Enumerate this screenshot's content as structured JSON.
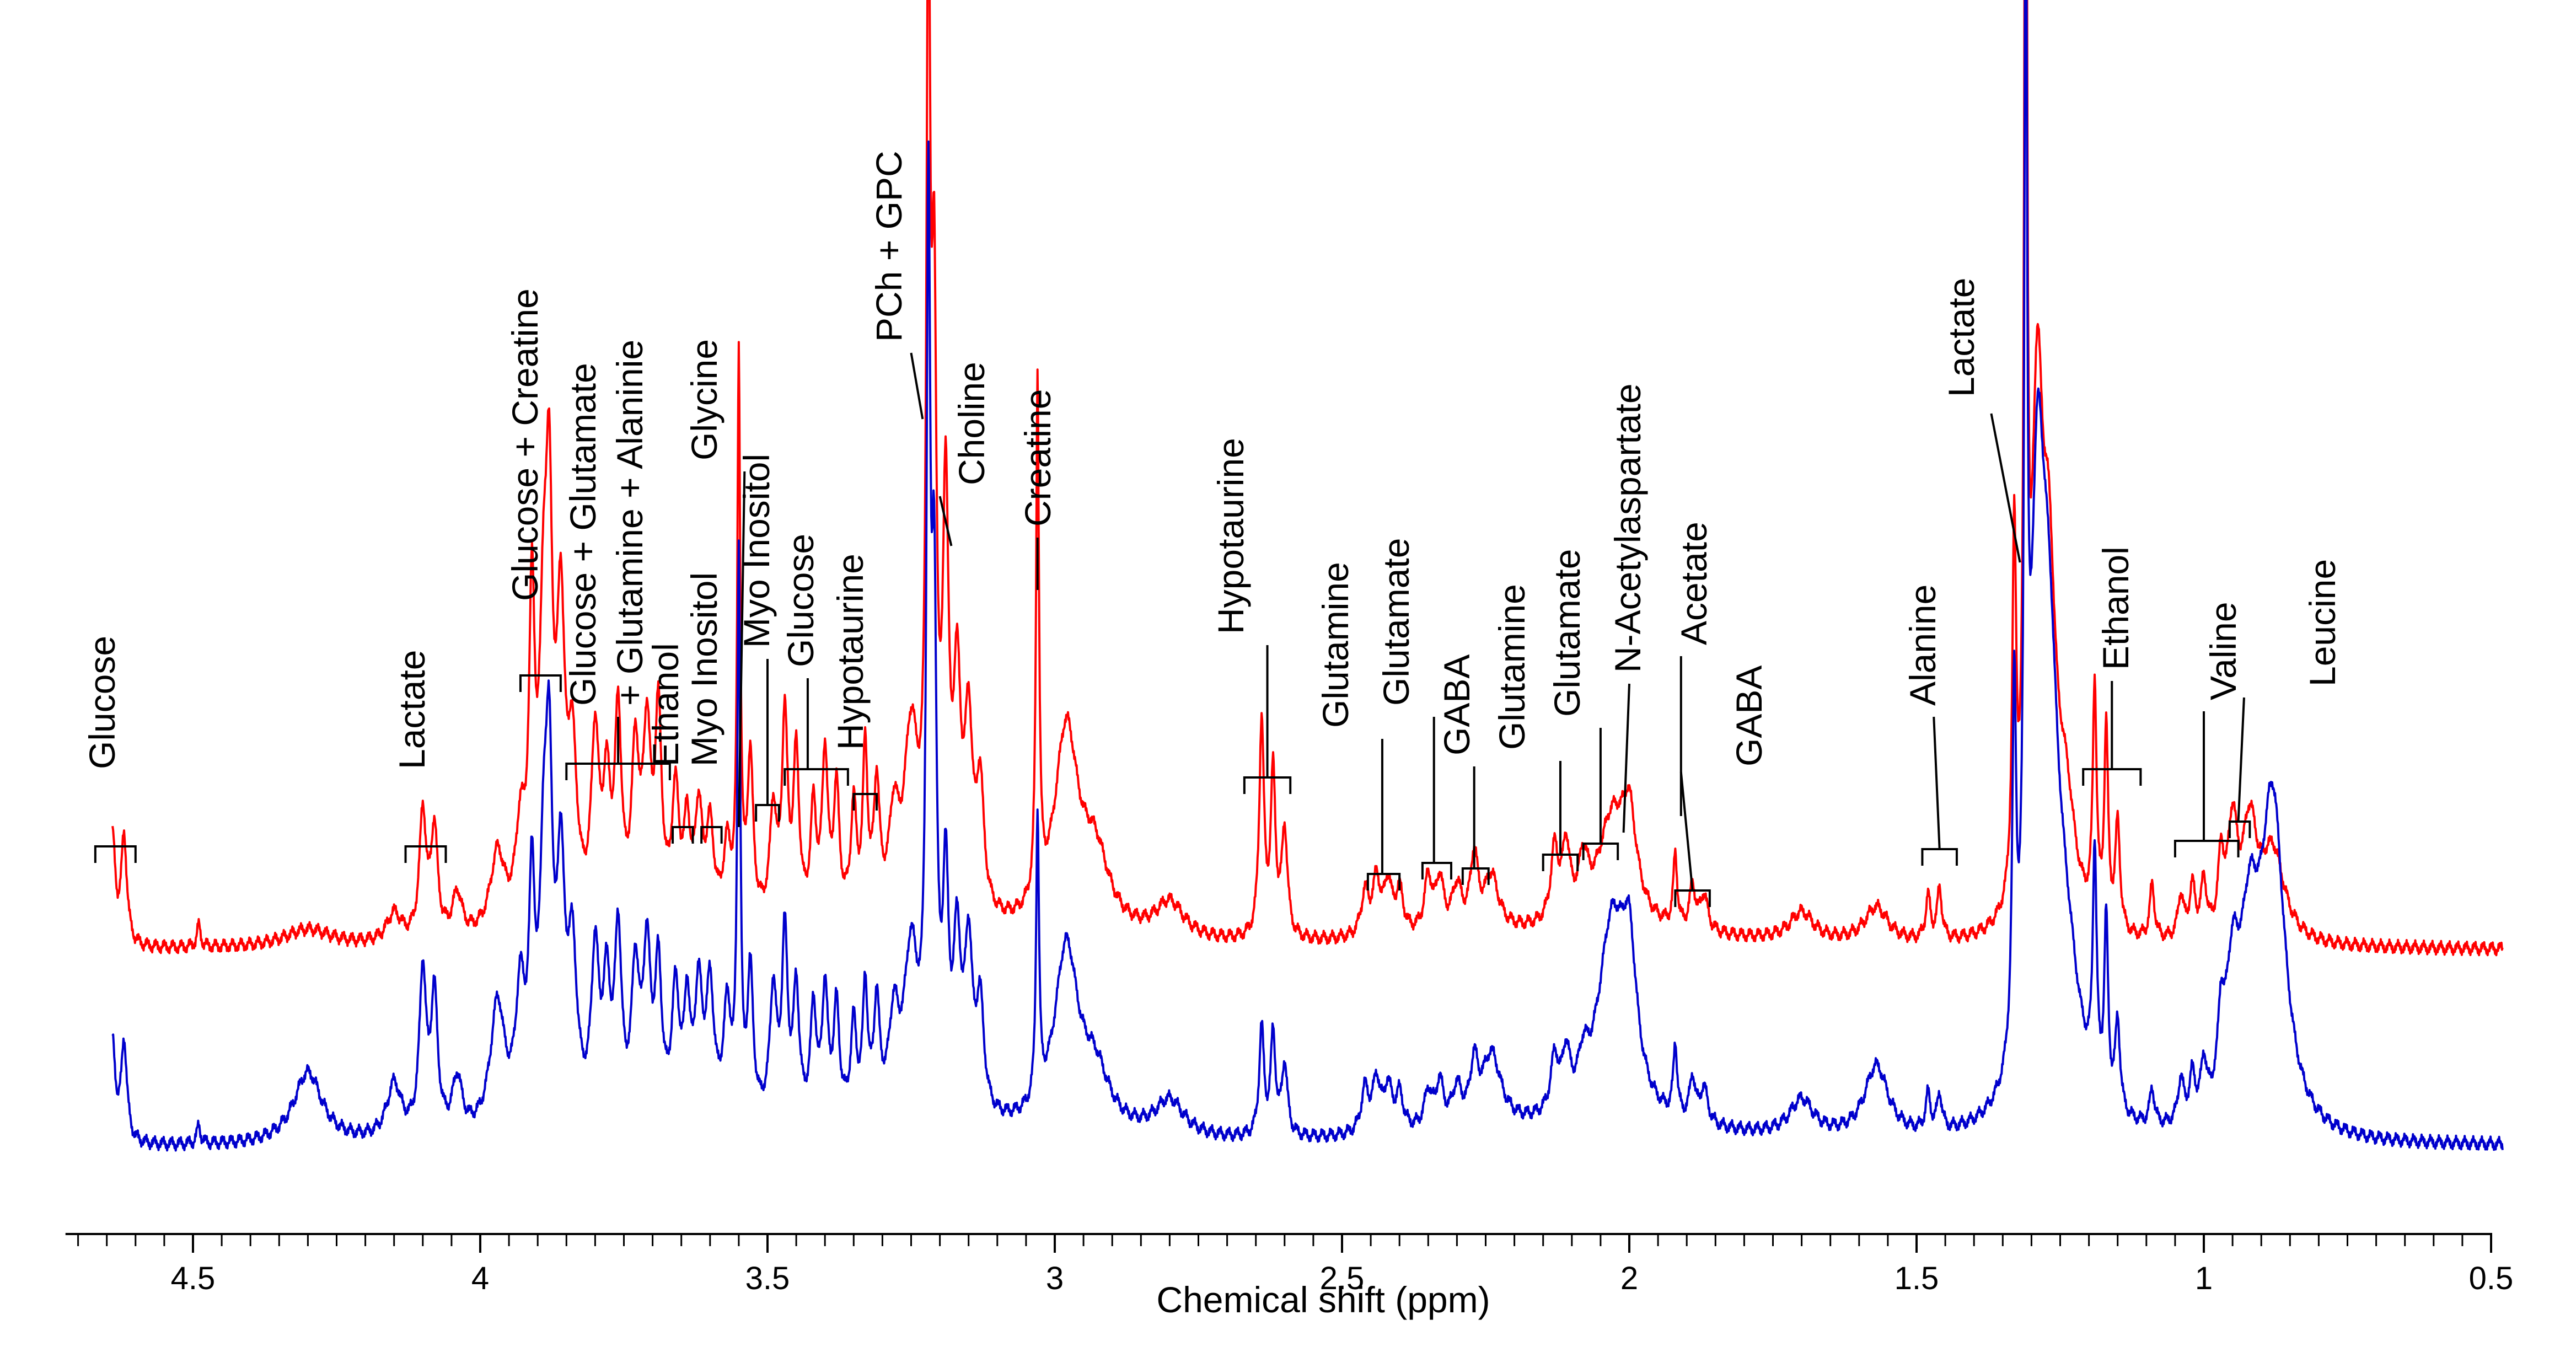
{
  "chart_data": {
    "type": "line",
    "title": "",
    "xlabel": "Chemical shift (ppm)",
    "ylabel": "",
    "xlim": [
      4.72,
      0.5
    ],
    "x_reversed": true,
    "grid": false,
    "legend": "none",
    "x_ticks": [
      {
        "value": 4.5,
        "label": "4.5"
      },
      {
        "value": 4.0,
        "label": "4"
      },
      {
        "value": 3.5,
        "label": "3.5"
      },
      {
        "value": 3.0,
        "label": "3"
      },
      {
        "value": 2.5,
        "label": "2.5"
      },
      {
        "value": 2.0,
        "label": "2"
      },
      {
        "value": 1.5,
        "label": "1.5"
      },
      {
        "value": 1.0,
        "label": "1"
      },
      {
        "value": 0.5,
        "label": "0.5"
      }
    ],
    "series": [
      {
        "name": "upper spectrum",
        "color": "#ff0000",
        "baseline": 0.0,
        "peaks": [
          [
            4.64,
            0.3,
            0.006
          ],
          [
            4.62,
            0.3,
            0.006
          ],
          [
            4.49,
            0.06,
            0.004
          ],
          [
            4.3,
            0.05,
            0.05
          ],
          [
            4.15,
            0.08,
            0.015
          ],
          [
            4.1,
            0.35,
            0.007
          ],
          [
            4.08,
            0.3,
            0.007
          ],
          [
            4.04,
            0.12,
            0.01
          ],
          [
            3.97,
            0.22,
            0.015
          ],
          [
            3.93,
            0.25,
            0.01
          ],
          [
            3.91,
            0.85,
            0.006
          ],
          [
            3.89,
            0.7,
            0.008
          ],
          [
            3.88,
            1.0,
            0.007
          ],
          [
            3.86,
            0.8,
            0.008
          ],
          [
            3.84,
            0.45,
            0.01
          ],
          [
            3.8,
            0.5,
            0.008
          ],
          [
            3.78,
            0.35,
            0.008
          ],
          [
            3.76,
            0.55,
            0.007
          ],
          [
            3.73,
            0.45,
            0.008
          ],
          [
            3.71,
            0.5,
            0.008
          ],
          [
            3.69,
            0.55,
            0.007
          ],
          [
            3.66,
            0.35,
            0.008
          ],
          [
            3.64,
            0.25,
            0.006
          ],
          [
            3.62,
            0.3,
            0.008
          ],
          [
            3.6,
            0.25,
            0.008
          ],
          [
            3.57,
            0.2,
            0.008
          ],
          [
            3.55,
            1.55,
            0.003
          ],
          [
            3.53,
            0.45,
            0.006
          ],
          [
            3.49,
            0.3,
            0.007
          ],
          [
            3.47,
            0.55,
            0.006
          ],
          [
            3.45,
            0.45,
            0.006
          ],
          [
            3.42,
            0.3,
            0.006
          ],
          [
            3.4,
            0.45,
            0.006
          ],
          [
            3.38,
            0.35,
            0.006
          ],
          [
            3.35,
            0.3,
            0.006
          ],
          [
            3.33,
            0.45,
            0.005
          ],
          [
            3.31,
            0.35,
            0.006
          ],
          [
            3.28,
            0.25,
            0.01
          ],
          [
            3.25,
            0.5,
            0.015
          ],
          [
            3.22,
            2.6,
            0.004
          ],
          [
            3.21,
            1.5,
            0.005
          ],
          [
            3.19,
            1.1,
            0.006
          ],
          [
            3.17,
            0.6,
            0.008
          ],
          [
            3.15,
            0.5,
            0.008
          ],
          [
            3.13,
            0.35,
            0.008
          ],
          [
            3.03,
            1.45,
            0.003
          ],
          [
            2.98,
            0.55,
            0.025
          ],
          [
            2.93,
            0.2,
            0.03
          ],
          [
            2.8,
            0.1,
            0.03
          ],
          [
            2.64,
            0.6,
            0.005
          ],
          [
            2.62,
            0.45,
            0.005
          ],
          [
            2.6,
            0.3,
            0.006
          ],
          [
            2.46,
            0.12,
            0.008
          ],
          [
            2.44,
            0.15,
            0.008
          ],
          [
            2.42,
            0.14,
            0.008
          ],
          [
            2.4,
            0.12,
            0.008
          ],
          [
            2.35,
            0.15,
            0.008
          ],
          [
            2.33,
            0.14,
            0.008
          ],
          [
            2.3,
            0.12,
            0.01
          ],
          [
            2.27,
            0.2,
            0.008
          ],
          [
            2.24,
            0.15,
            0.015
          ],
          [
            2.13,
            0.2,
            0.008
          ],
          [
            2.11,
            0.2,
            0.008
          ],
          [
            2.08,
            0.15,
            0.01
          ],
          [
            2.03,
            0.3,
            0.03
          ],
          [
            2.0,
            0.25,
            0.015
          ],
          [
            1.92,
            0.2,
            0.004
          ],
          [
            1.89,
            0.12,
            0.006
          ],
          [
            1.87,
            0.1,
            0.008
          ],
          [
            1.7,
            0.08,
            0.025
          ],
          [
            1.57,
            0.1,
            0.025
          ],
          [
            1.48,
            0.12,
            0.005
          ],
          [
            1.46,
            0.14,
            0.005
          ],
          [
            1.33,
            1.0,
            0.004
          ],
          [
            1.31,
            3.35,
            0.003
          ],
          [
            1.29,
            1.3,
            0.012
          ],
          [
            1.27,
            0.85,
            0.015
          ],
          [
            1.24,
            0.3,
            0.02
          ],
          [
            1.19,
            0.65,
            0.004
          ],
          [
            1.17,
            0.55,
            0.004
          ],
          [
            1.15,
            0.3,
            0.005
          ],
          [
            1.09,
            0.15,
            0.005
          ],
          [
            1.04,
            0.12,
            0.006
          ],
          [
            1.02,
            0.14,
            0.006
          ],
          [
            1.0,
            0.15,
            0.006
          ],
          [
            0.97,
            0.2,
            0.006
          ],
          [
            0.95,
            0.3,
            0.01
          ],
          [
            0.92,
            0.3,
            0.015
          ],
          [
            0.88,
            0.25,
            0.025
          ]
        ]
      },
      {
        "name": "lower spectrum",
        "color": "#0000cc",
        "baseline": -0.55,
        "peaks": [
          [
            4.64,
            0.28,
            0.006
          ],
          [
            4.62,
            0.28,
            0.006
          ],
          [
            4.49,
            0.05,
            0.004
          ],
          [
            4.3,
            0.2,
            0.03
          ],
          [
            4.15,
            0.15,
            0.015
          ],
          [
            4.1,
            0.45,
            0.007
          ],
          [
            4.08,
            0.38,
            0.007
          ],
          [
            4.04,
            0.15,
            0.01
          ],
          [
            3.97,
            0.35,
            0.015
          ],
          [
            3.93,
            0.35,
            0.01
          ],
          [
            3.91,
            0.6,
            0.006
          ],
          [
            3.89,
            0.6,
            0.008
          ],
          [
            3.88,
            0.85,
            0.007
          ],
          [
            3.86,
            0.65,
            0.008
          ],
          [
            3.84,
            0.45,
            0.01
          ],
          [
            3.8,
            0.45,
            0.008
          ],
          [
            3.78,
            0.35,
            0.008
          ],
          [
            3.76,
            0.5,
            0.007
          ],
          [
            3.73,
            0.4,
            0.008
          ],
          [
            3.71,
            0.45,
            0.008
          ],
          [
            3.69,
            0.4,
            0.007
          ],
          [
            3.66,
            0.35,
            0.008
          ],
          [
            3.64,
            0.3,
            0.006
          ],
          [
            3.62,
            0.35,
            0.008
          ],
          [
            3.6,
            0.35,
            0.008
          ],
          [
            3.57,
            0.3,
            0.008
          ],
          [
            3.55,
            1.55,
            0.003
          ],
          [
            3.53,
            0.4,
            0.006
          ],
          [
            3.49,
            0.35,
            0.007
          ],
          [
            3.47,
            0.5,
            0.006
          ],
          [
            3.45,
            0.35,
            0.006
          ],
          [
            3.42,
            0.3,
            0.006
          ],
          [
            3.4,
            0.35,
            0.006
          ],
          [
            3.38,
            0.3,
            0.006
          ],
          [
            3.35,
            0.25,
            0.006
          ],
          [
            3.33,
            0.35,
            0.005
          ],
          [
            3.31,
            0.3,
            0.006
          ],
          [
            3.28,
            0.25,
            0.01
          ],
          [
            3.25,
            0.45,
            0.015
          ],
          [
            3.22,
            2.35,
            0.004
          ],
          [
            3.21,
            1.3,
            0.005
          ],
          [
            3.19,
            0.6,
            0.006
          ],
          [
            3.17,
            0.45,
            0.008
          ],
          [
            3.15,
            0.45,
            0.008
          ],
          [
            3.13,
            0.3,
            0.008
          ],
          [
            3.03,
            0.8,
            0.003
          ],
          [
            2.98,
            0.5,
            0.025
          ],
          [
            2.93,
            0.15,
            0.03
          ],
          [
            2.8,
            0.1,
            0.03
          ],
          [
            2.64,
            0.3,
            0.005
          ],
          [
            2.62,
            0.28,
            0.005
          ],
          [
            2.6,
            0.2,
            0.006
          ],
          [
            2.46,
            0.12,
            0.008
          ],
          [
            2.44,
            0.14,
            0.008
          ],
          [
            2.42,
            0.12,
            0.008
          ],
          [
            2.4,
            0.1,
            0.008
          ],
          [
            2.35,
            0.1,
            0.008
          ],
          [
            2.33,
            0.12,
            0.008
          ],
          [
            2.3,
            0.1,
            0.01
          ],
          [
            2.27,
            0.15,
            0.008
          ],
          [
            2.24,
            0.2,
            0.02
          ],
          [
            2.13,
            0.15,
            0.008
          ],
          [
            2.11,
            0.15,
            0.008
          ],
          [
            2.08,
            0.1,
            0.01
          ],
          [
            2.03,
            0.55,
            0.03
          ],
          [
            2.0,
            0.35,
            0.015
          ],
          [
            1.92,
            0.2,
            0.004
          ],
          [
            1.89,
            0.12,
            0.006
          ],
          [
            1.87,
            0.1,
            0.008
          ],
          [
            1.7,
            0.1,
            0.025
          ],
          [
            1.57,
            0.2,
            0.025
          ],
          [
            1.48,
            0.1,
            0.005
          ],
          [
            1.46,
            0.1,
            0.005
          ],
          [
            1.33,
            1.0,
            0.004
          ],
          [
            1.31,
            2.9,
            0.003
          ],
          [
            1.29,
            1.4,
            0.015
          ],
          [
            1.27,
            1.0,
            0.02
          ],
          [
            1.24,
            0.35,
            0.03
          ],
          [
            1.19,
            0.65,
            0.004
          ],
          [
            1.17,
            0.5,
            0.004
          ],
          [
            1.15,
            0.25,
            0.005
          ],
          [
            1.09,
            0.1,
            0.005
          ],
          [
            1.04,
            0.12,
            0.006
          ],
          [
            1.02,
            0.12,
            0.006
          ],
          [
            1.0,
            0.14,
            0.006
          ],
          [
            0.97,
            0.2,
            0.006
          ],
          [
            0.95,
            0.35,
            0.015
          ],
          [
            0.92,
            0.45,
            0.02
          ],
          [
            0.88,
            0.9,
            0.025
          ]
        ]
      }
    ],
    "annotations": [
      {
        "text": "Glucose",
        "ppm": 4.635
      },
      {
        "text": "Lactate",
        "ppm": 4.09
      },
      {
        "text": "Glucose + Creatine",
        "ppm": 3.895
      },
      {
        "text": "Glucose + Glutamate",
        "ppm": 3.76
      },
      {
        "text": "+ Glutamine + Alaninie",
        "ppm": 3.76
      },
      {
        "text": "Ethanol",
        "ppm": 3.645
      },
      {
        "text": "Myo Inositol",
        "ppm": 3.595
      },
      {
        "text": "Glycine",
        "ppm": 3.55
      },
      {
        "text": "Myo Inositol",
        "ppm": 3.5
      },
      {
        "text": "Glucose",
        "ppm": 3.43
      },
      {
        "text": "Hypotaurine",
        "ppm": 3.33
      },
      {
        "text": "PCh + GPC",
        "ppm": 3.22
      },
      {
        "text": "Choline",
        "ppm": 3.18
      },
      {
        "text": "Creatine",
        "ppm": 3.03
      },
      {
        "text": "Hypotaurine",
        "ppm": 2.63
      },
      {
        "text": "Glutamine",
        "ppm": 2.43
      },
      {
        "text": "Glutamate",
        "ppm": 2.34
      },
      {
        "text": "GABA",
        "ppm": 2.27
      },
      {
        "text": "Glutamine",
        "ppm": 2.12
      },
      {
        "text": "Glutamate",
        "ppm": 2.05
      },
      {
        "text": "N-Acetylaspartate",
        "ppm": 2.02
      },
      {
        "text": "Acetate",
        "ppm": 1.91
      },
      {
        "text": "GABA",
        "ppm": 1.89
      },
      {
        "text": "Alanine",
        "ppm": 1.47
      },
      {
        "text": "Lactate",
        "ppm": 1.31
      },
      {
        "text": "Ethanol",
        "ppm": 1.16
      },
      {
        "text": "Valine",
        "ppm": 1.0
      },
      {
        "text": "Leucine",
        "ppm": 0.94
      }
    ]
  }
}
